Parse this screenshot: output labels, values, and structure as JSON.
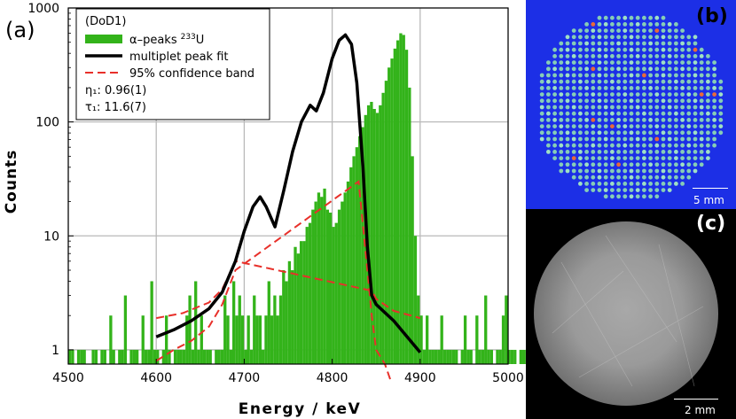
{
  "panels": {
    "a": "(a)",
    "b": "(b)",
    "c": "(c)"
  },
  "scalebars": {
    "b": "5 mm",
    "c": "2 mm"
  },
  "colors": {
    "histogram": "#33b31a",
    "fit": "#000000",
    "band": "#e8302a",
    "grid": "#b9b9b9",
    "panel_b_bg": "#1c2fe6",
    "panel_c_bg": "#000000"
  },
  "chart_data": {
    "type": "bar",
    "xlabel": "Energy / keV",
    "ylabel": "Counts",
    "xlim": [
      4500,
      5000
    ],
    "ylim": [
      0.75,
      1000
    ],
    "yscale": "log",
    "grid": true,
    "xticks": [
      4500,
      4600,
      4700,
      4800,
      4900,
      5000
    ],
    "xtick_labels": [
      "4500",
      "4600",
      "4700",
      "4800",
      "4900",
      "5000"
    ],
    "yticks": [
      1,
      10,
      100,
      1000
    ],
    "ytick_labels": [
      "1",
      "10",
      "100",
      "1000"
    ],
    "legend": {
      "placement": "top-left",
      "title": "(DoD1)",
      "entries": [
        {
          "label": "α–peaks",
          "sup": "233",
          "label_suffix": "U",
          "kind": "histogram"
        },
        {
          "label": "multiplet peak fit",
          "kind": "line"
        },
        {
          "label": "95% confidence band",
          "kind": "dashed"
        }
      ],
      "params": [
        "η₁: 0.96(1)",
        "τ₁: 11.6(7)"
      ]
    },
    "histogram": {
      "name": "α–peaks 233U",
      "x_start": 4500,
      "bin_width": 3.33,
      "counts": [
        1,
        1,
        0,
        1,
        1,
        1,
        0,
        0,
        1,
        1,
        0,
        1,
        1,
        0,
        2,
        1,
        0,
        1,
        1,
        3,
        0,
        1,
        1,
        1,
        0,
        2,
        1,
        1,
        4,
        1,
        1,
        0,
        1,
        2,
        1,
        0,
        1,
        1,
        1,
        1,
        2,
        3,
        1,
        4,
        1,
        2,
        1,
        1,
        1,
        0,
        1,
        1,
        1,
        3,
        2,
        1,
        4,
        2,
        3,
        2,
        1,
        2,
        1,
        3,
        2,
        2,
        1,
        2,
        4,
        2,
        3,
        2,
        3,
        5,
        4,
        6,
        5,
        8,
        7,
        9,
        9,
        12,
        13,
        17,
        20,
        24,
        22,
        26,
        17,
        16,
        12,
        13,
        17,
        20,
        24,
        30,
        40,
        50,
        60,
        75,
        90,
        115,
        140,
        150,
        130,
        120,
        140,
        180,
        230,
        300,
        360,
        440,
        520,
        600,
        580,
        430,
        200,
        50,
        10,
        3,
        2,
        1,
        2,
        1,
        1,
        1,
        1,
        2,
        1,
        1,
        1,
        1,
        1,
        0,
        1,
        2,
        1,
        1,
        0,
        2,
        1,
        1,
        3,
        1,
        1,
        0,
        1,
        1,
        2,
        3,
        1,
        1,
        1,
        0,
        1,
        1,
        1,
        2,
        1,
        3,
        1,
        1,
        1,
        2,
        1,
        1,
        1,
        1,
        1,
        1,
        1,
        1,
        1,
        1,
        1,
        2,
        1,
        3,
        1,
        1,
        1,
        0,
        1,
        1,
        2,
        1,
        1,
        1,
        1,
        2,
        3,
        1,
        1,
        2,
        1,
        1,
        1
      ]
    },
    "fit": {
      "name": "multiplet peak fit",
      "x": [
        4600,
        4620,
        4640,
        4660,
        4675,
        4690,
        4700,
        4710,
        4718,
        4725,
        4735,
        4745,
        4755,
        4765,
        4775,
        4782,
        4790,
        4800,
        4808,
        4815,
        4822,
        4828,
        4835,
        4840,
        4845,
        4850,
        4870,
        4900
      ],
      "y": [
        1.3,
        1.5,
        1.8,
        2.3,
        3.2,
        6,
        11,
        18,
        22,
        18,
        12,
        25,
        55,
        100,
        140,
        125,
        180,
        360,
        520,
        580,
        480,
        220,
        40,
        8,
        3,
        2.5,
        1.8,
        0.95
      ]
    },
    "band_upper": {
      "name": "95% confidence band upper",
      "x": [
        4600,
        4630,
        4660,
        4675,
        4690,
        4845,
        4850,
        4870,
        4900
      ],
      "y": [
        1.9,
        2.1,
        2.6,
        3.4,
        6,
        3.3,
        2.8,
        2.2,
        1.9
      ]
    },
    "band_lower": {
      "name": "95% confidence band lower",
      "x": [
        4600,
        4620,
        4640,
        4660,
        4675,
        4690,
        4830,
        4840,
        4845,
        4850,
        4860,
        4866
      ],
      "y": [
        0.8,
        1,
        1.2,
        1.6,
        2.5,
        5,
        30,
        5,
        2,
        1,
        0.75,
        0.55
      ]
    }
  }
}
